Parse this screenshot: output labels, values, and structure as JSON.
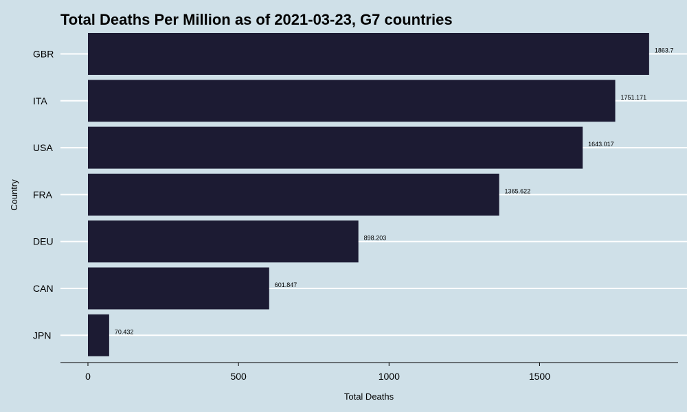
{
  "chart_data": {
    "type": "bar",
    "orientation": "horizontal",
    "title": "Total Deaths Per Million as of 2021-03-23, G7 countries",
    "xlabel": "Total Deaths",
    "ylabel": "Country",
    "categories": [
      "GBR",
      "ITA",
      "USA",
      "FRA",
      "DEU",
      "CAN",
      "JPN"
    ],
    "values": [
      1863.7,
      1751.171,
      1643.017,
      1365.622,
      898.203,
      601.847,
      70.432
    ],
    "data_labels": [
      "1863.7",
      "1751.171",
      "1643.017",
      "1365.622",
      "898.203",
      "601.847",
      "70.432"
    ],
    "xticks": [
      0,
      500,
      1000,
      1500
    ],
    "xtick_labels": [
      "0",
      "500",
      "1000",
      "1500"
    ],
    "xlim": [
      -91,
      1950
    ],
    "grid": "horizontal major lines",
    "colors": {
      "background": "#cfe0e8",
      "bar": "#1c1b33",
      "grid": "#ffffff",
      "axis": "#000000"
    }
  }
}
